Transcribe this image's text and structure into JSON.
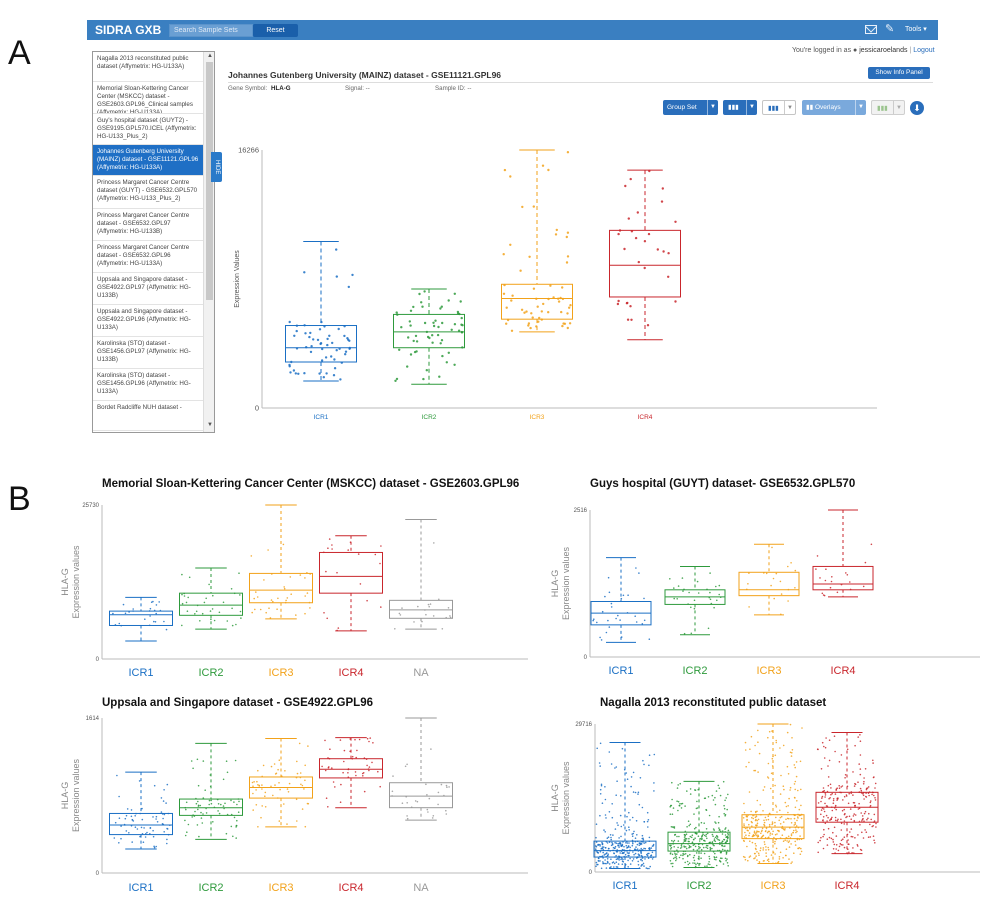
{
  "panel_labels": {
    "a": "A",
    "b": "B"
  },
  "app": {
    "brand": "SIDRA   GXB",
    "search_placeholder": "Search Sample Sets",
    "reset_label": "Reset",
    "tools_label": "Tools ▾",
    "icons": [
      "mail-icon",
      "pencil-icon"
    ],
    "logged_in_prefix": "You're logged in as",
    "user": "jessicaroelands",
    "logout_label": "Logout",
    "accent": "#3a7fc1"
  },
  "dataset_list": [
    {
      "label": "Nagalla 2013 reconstituted public dataset (Affymetrix: HG-U133A)",
      "selected": false
    },
    {
      "label": "Memorial Sloan-Kettering Cancer Center (MSKCC) dataset - GSE2603.GPL96_Clinical samples (Affymetrix: HG-U133A)",
      "selected": false
    },
    {
      "label": "Guy's hospital dataset (GUYT2) - GSE9195.GPL570.ICEL (Affymetrix: HG-U133_Plus_2)",
      "selected": false
    },
    {
      "label": "Johannes Gutenberg University (MAINZ) dataset - GSE11121.GPL96 (Affymetrix: HG-U133A)",
      "selected": true
    },
    {
      "label": "Princess Margaret Cancer Centre dataset (GUYT) - GSE6532.GPL570 (Affymetrix: HG-U133_Plus_2)",
      "selected": false
    },
    {
      "label": "Princess Margaret Cancer Centre dataset - GSE6532.GPL97 (Affymetrix: HG-U133B)",
      "selected": false
    },
    {
      "label": "Princess Margaret Cancer Centre dataset - GSE6532.GPL96 (Affymetrix: HG-U133A)",
      "selected": false
    },
    {
      "label": "Uppsala and Singapore dataset - GSE4922.GPL97 (Affymetrix: HG-U133B)",
      "selected": false
    },
    {
      "label": "Uppsala and Singapore dataset - GSE4922.GPL96 (Affymetrix: HG-U133A)",
      "selected": false
    },
    {
      "label": "Karolinska (STO) dataset - GSE1456.GPL97 (Affymetrix: HG-U133B)",
      "selected": false
    },
    {
      "label": "Karolinska (STO) dataset - GSE1456.GPL96 (Affymetrix: HG-U133A)",
      "selected": false
    },
    {
      "label": "Bordet Radcliffe NUH dataset -",
      "selected": false
    }
  ],
  "hide_tab_label": "HIDE",
  "dataset_header": {
    "title": "Johannes Gutenberg University (MAINZ) dataset - GSE11121.GPL96",
    "show_info_label": "Show Info Panel",
    "gene_symbol_label": "Gene Symbol:",
    "gene_symbol": "HLA-G",
    "signal_label": "Signal: --",
    "sample_id_label": "Sample ID: --"
  },
  "toolbar": {
    "group_set_label": "Group Set",
    "overlays_label": "Overlays",
    "icons": [
      "bar-chart-icon",
      "bar-chart-icon",
      "bar-chart-icon",
      "download-icon"
    ]
  },
  "chart_data": [
    {
      "id": "mainz",
      "type": "box",
      "title": "",
      "ylabel": "Expression Values",
      "ylim": [
        0,
        16266
      ],
      "yticks": [
        0,
        16266
      ],
      "categories": [
        "ICR1",
        "ICR2",
        "ICR3",
        "ICR4"
      ],
      "colors": [
        "#1a6fc4",
        "#2e9a3c",
        "#f2a21a",
        "#c9262c"
      ],
      "n_points": [
        60,
        60,
        60,
        30
      ],
      "boxes": [
        {
          "min": 1700,
          "q1": 2900,
          "median": 3800,
          "q3": 5200,
          "max": 10500
        },
        {
          "min": 1500,
          "q1": 3800,
          "median": 4800,
          "q3": 5900,
          "max": 7500
        },
        {
          "min": 4800,
          "q1": 5600,
          "median": 6900,
          "q3": 7800,
          "max": 16266
        },
        {
          "min": 4300,
          "q1": 7000,
          "median": 9000,
          "q3": 11200,
          "max": 15000
        }
      ]
    },
    {
      "id": "mskcc",
      "type": "box",
      "title": "Memorial Sloan-Kettering Cancer Center (MSKCC) dataset - GSE2603.GPL96",
      "ylabel_top": "HLA-G",
      "ylabel": "Expression values",
      "ylim": [
        0,
        25730
      ],
      "yticks": [
        0,
        25730
      ],
      "categories": [
        "ICR1",
        "ICR2",
        "ICR3",
        "ICR4",
        "NA"
      ],
      "colors": [
        "#1a6fc4",
        "#2e9a3c",
        "#f2a21a",
        "#c9262c",
        "#999999"
      ],
      "n_points": [
        25,
        35,
        35,
        20,
        20
      ],
      "boxes": [
        {
          "min": 3000,
          "q1": 5600,
          "median": 7400,
          "q3": 8000,
          "max": 10300
        },
        {
          "min": 5000,
          "q1": 7300,
          "median": 9000,
          "q3": 11000,
          "max": 15200
        },
        {
          "min": 6700,
          "q1": 9400,
          "median": 11500,
          "q3": 14300,
          "max": 25730
        },
        {
          "min": 4700,
          "q1": 11000,
          "median": 13800,
          "q3": 17800,
          "max": 20600
        },
        {
          "min": 5000,
          "q1": 6800,
          "median": 8200,
          "q3": 9800,
          "max": 23300
        }
      ]
    },
    {
      "id": "guyt",
      "type": "box",
      "title": "Guys hospital (GUYT) dataset- GSE6532.GPL570",
      "ylabel_top": "HLA-G",
      "ylabel": "Expression values",
      "ylim": [
        0,
        2516
      ],
      "yticks": [
        0,
        2516
      ],
      "categories": [
        "ICR1",
        "ICR2",
        "ICR3",
        "ICR4"
      ],
      "colors": [
        "#1a6fc4",
        "#2e9a3c",
        "#f2a21a",
        "#c9262c"
      ],
      "n_points": [
        30,
        30,
        20,
        20
      ],
      "boxes": [
        {
          "min": 250,
          "q1": 550,
          "median": 750,
          "q3": 950,
          "max": 1700
        },
        {
          "min": 380,
          "q1": 900,
          "median": 1030,
          "q3": 1150,
          "max": 1550
        },
        {
          "min": 720,
          "q1": 1050,
          "median": 1150,
          "q3": 1450,
          "max": 1930
        },
        {
          "min": 1030,
          "q1": 1150,
          "median": 1250,
          "q3": 1550,
          "max": 2516
        }
      ]
    },
    {
      "id": "uppsala",
      "type": "box",
      "title": "Uppsala and Singapore dataset - GSE4922.GPL96",
      "ylabel_top": "HLA-G",
      "ylabel": "Expression values",
      "ylim": [
        0,
        1614
      ],
      "yticks": [
        0,
        1614
      ],
      "categories": [
        "ICR1",
        "ICR2",
        "ICR3",
        "ICR4",
        "NA"
      ],
      "colors": [
        "#1a6fc4",
        "#2e9a3c",
        "#f2a21a",
        "#c9262c",
        "#999999"
      ],
      "n_points": [
        70,
        70,
        60,
        50,
        30
      ],
      "boxes": [
        {
          "min": 250,
          "q1": 400,
          "median": 500,
          "q3": 620,
          "max": 1050
        },
        {
          "min": 350,
          "q1": 600,
          "median": 680,
          "q3": 770,
          "max": 1350
        },
        {
          "min": 480,
          "q1": 780,
          "median": 890,
          "q3": 1000,
          "max": 1400
        },
        {
          "min": 680,
          "q1": 990,
          "median": 1080,
          "q3": 1190,
          "max": 1410
        },
        {
          "min": 550,
          "q1": 680,
          "median": 800,
          "q3": 940,
          "max": 1614
        }
      ]
    },
    {
      "id": "nagalla",
      "type": "box",
      "title": "Nagalla 2013 reconstituted public dataset",
      "ylabel_top": "HLA-G",
      "ylabel": "Expression values",
      "ylim": [
        0,
        29716
      ],
      "yticks": [
        0,
        29716
      ],
      "categories": [
        "ICR1",
        "ICR2",
        "ICR3",
        "ICR4"
      ],
      "colors": [
        "#1a6fc4",
        "#2e9a3c",
        "#f2a21a",
        "#c9262c"
      ],
      "n_points": [
        350,
        320,
        330,
        260
      ],
      "boxes": [
        {
          "min": 700,
          "q1": 3000,
          "median": 4300,
          "q3": 6200,
          "max": 26000
        },
        {
          "min": 900,
          "q1": 4200,
          "median": 5700,
          "q3": 8000,
          "max": 18200
        },
        {
          "min": 1700,
          "q1": 6700,
          "median": 9000,
          "q3": 11500,
          "max": 29716
        },
        {
          "min": 3700,
          "q1": 10000,
          "median": 13000,
          "q3": 16000,
          "max": 28000
        }
      ]
    }
  ]
}
